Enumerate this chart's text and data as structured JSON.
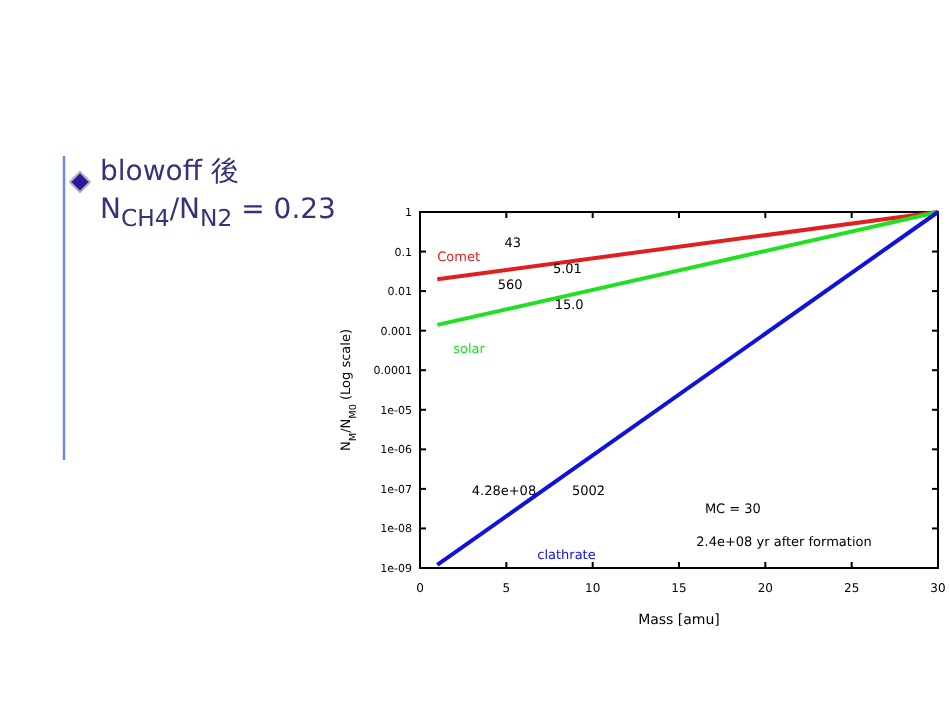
{
  "chart_data": {
    "type": "line",
    "xlabel": "Mass [amu]",
    "ylabel": "N$_{M}$/N$_{M0}$   (Log scale)",
    "log": "y",
    "xlim": [
      0,
      30
    ],
    "ylim": [
      1e-09,
      1
    ],
    "xticks": [
      0,
      5,
      10,
      15,
      20,
      25,
      30
    ],
    "yticks": [
      {
        "value": 1e-09,
        "label": "1e-09"
      },
      {
        "value": 1e-08,
        "label": "1e-08"
      },
      {
        "value": 1e-07,
        "label": "1e-07"
      },
      {
        "value": 1e-06,
        "label": "1e-06"
      },
      {
        "value": 1e-05,
        "label": "1e-05"
      },
      0.0001,
      0.001,
      0.01,
      0.1,
      1
    ],
    "grid": false,
    "legend": false,
    "x": [
      1,
      30
    ],
    "marker": "none",
    "line_style": "solid",
    "series": [
      {
        "name": "Comet",
        "color": "#e02020",
        "values": [
          0.02,
          1
        ]
      },
      {
        "name": "solar",
        "color": "#20e020",
        "values": [
          0.0014,
          1
        ]
      },
      {
        "name": "clathrate",
        "color": "#1010e0",
        "values": [
          1.2e-09,
          1
        ]
      }
    ],
    "annotations": [
      "blowoff 後",
      "N$_{CH4}$/N$_{N2}$ = 0.23",
      "43",
      "5.01",
      "560",
      "15.0",
      "4.28e+08",
      "5002",
      "MC = 30",
      "2.4e+08 yr after formation"
    ]
  }
}
